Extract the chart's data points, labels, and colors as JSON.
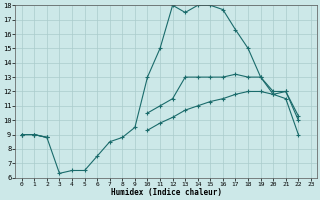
{
  "xlabel": "Humidex (Indice chaleur)",
  "xlim": [
    -0.5,
    23.5
  ],
  "ylim": [
    6,
    18
  ],
  "xticks": [
    0,
    1,
    2,
    3,
    4,
    5,
    6,
    7,
    8,
    9,
    10,
    11,
    12,
    13,
    14,
    15,
    16,
    17,
    18,
    19,
    20,
    21,
    22,
    23
  ],
  "yticks": [
    6,
    7,
    8,
    9,
    10,
    11,
    12,
    13,
    14,
    15,
    16,
    17,
    18
  ],
  "bg_color": "#cce8e8",
  "line_color": "#1a6b6b",
  "grid_color": "#aacccc",
  "line1_y": [
    9,
    9,
    8.8,
    6.3,
    6.5,
    6.5,
    7.5,
    8.5,
    8.8,
    9.5,
    13,
    15,
    18,
    17.5,
    18,
    18,
    17.7,
    16.3,
    15,
    13,
    12,
    12,
    10.3,
    null
  ],
  "line2_y": [
    9,
    9,
    8.8,
    null,
    null,
    null,
    null,
    null,
    null,
    null,
    10.5,
    11,
    11.5,
    13,
    13,
    13,
    13,
    13.2,
    13,
    13,
    11.8,
    12,
    10,
    null
  ],
  "line3_y": [
    9,
    9,
    8.8,
    null,
    null,
    null,
    null,
    null,
    null,
    null,
    9.3,
    9.8,
    10.2,
    10.7,
    11,
    11.3,
    11.5,
    11.8,
    12,
    12,
    11.8,
    11.5,
    9.0,
    null
  ]
}
